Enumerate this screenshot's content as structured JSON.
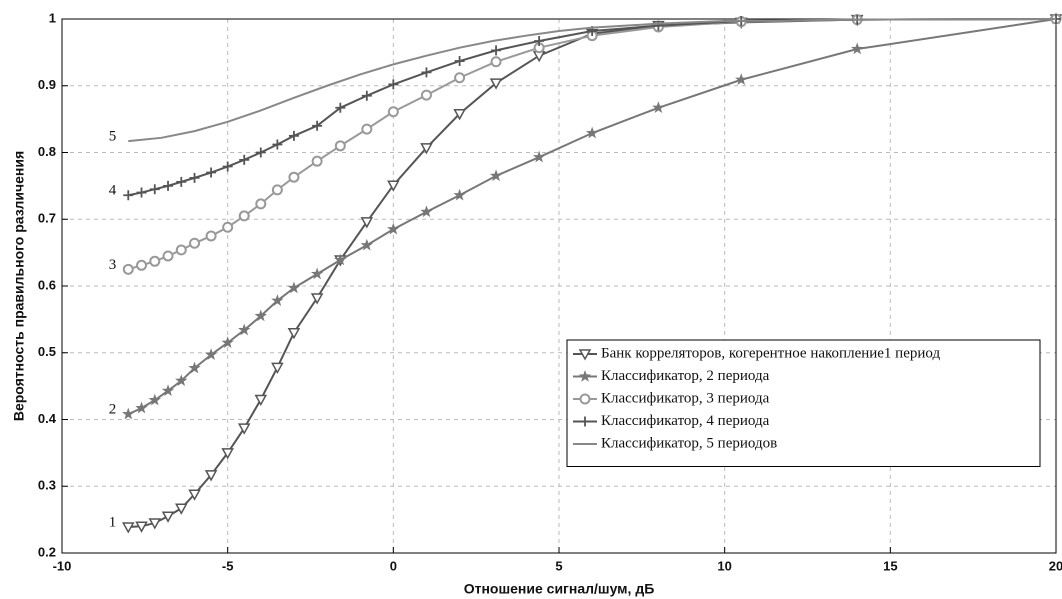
{
  "chart_data": {
    "type": "line",
    "xlabel": "Отношение сигнал/шум, дБ",
    "ylabel": "Вероятность правильного  различения",
    "xlim": [
      -10,
      20
    ],
    "xticks": [
      -10,
      -5,
      0,
      5,
      10,
      15,
      20
    ],
    "ylim": [
      0.2,
      1
    ],
    "yticks": [
      0.2,
      0.3,
      0.4,
      0.5,
      0.6,
      0.7,
      0.8,
      0.9,
      1
    ],
    "grid": true,
    "legend": "lower right",
    "series": [
      {
        "name": "Банк корреляторов, когерентное накопление1 период",
        "label": "1",
        "color": "#555555",
        "marker": "triangle-down",
        "x": [
          -8,
          -7.6,
          -7.2,
          -6.8,
          -6.4,
          -6,
          -5.5,
          -5,
          -4.5,
          -4,
          -3.5,
          -3,
          -2.3,
          -1.6,
          -0.8,
          0,
          1,
          2,
          3.1,
          4.4,
          6,
          8,
          10.5,
          14,
          20
        ],
        "values": [
          0.239,
          0.24,
          0.245,
          0.255,
          0.267,
          0.288,
          0.317,
          0.35,
          0.387,
          0.43,
          0.478,
          0.53,
          0.582,
          0.639,
          0.696,
          0.751,
          0.807,
          0.858,
          0.904,
          0.945,
          0.978,
          0.99,
          0.995,
          0.999,
          1
        ]
      },
      {
        "name": "Классификатор, 2 периода",
        "label": "2",
        "color": "#777777",
        "marker": "star",
        "x": [
          -8,
          -7.6,
          -7.2,
          -6.8,
          -6.4,
          -6,
          -5.5,
          -5,
          -4.5,
          -4,
          -3.5,
          -3,
          -2.3,
          -1.6,
          -0.8,
          0,
          1,
          2,
          3.1,
          4.4,
          6,
          8,
          10.5,
          14,
          20
        ],
        "values": [
          0.408,
          0.417,
          0.429,
          0.443,
          0.458,
          0.477,
          0.497,
          0.515,
          0.534,
          0.555,
          0.578,
          0.597,
          0.618,
          0.639,
          0.661,
          0.685,
          0.711,
          0.736,
          0.765,
          0.793,
          0.829,
          0.867,
          0.909,
          0.955,
          1
        ]
      },
      {
        "name": "Классификатор, 3 периода",
        "label": "3",
        "color": "#999999",
        "marker": "circle",
        "x": [
          -8,
          -7.6,
          -7.2,
          -6.8,
          -6.4,
          -6,
          -5.5,
          -5,
          -4.5,
          -4,
          -3.5,
          -3,
          -2.3,
          -1.6,
          -0.8,
          0,
          1,
          2,
          3.1,
          4.4,
          6,
          8,
          10.5,
          14,
          20
        ],
        "values": [
          0.625,
          0.631,
          0.637,
          0.645,
          0.654,
          0.664,
          0.675,
          0.688,
          0.705,
          0.723,
          0.744,
          0.763,
          0.787,
          0.81,
          0.835,
          0.861,
          0.886,
          0.912,
          0.936,
          0.957,
          0.975,
          0.988,
          0.996,
          0.999,
          1
        ]
      },
      {
        "name": "Классификатор, 4 периода",
        "label": "4",
        "color": "#555555",
        "marker": "plus",
        "x": [
          -8,
          -7.6,
          -7.2,
          -6.8,
          -6.4,
          -6,
          -5.5,
          -5,
          -4.5,
          -4,
          -3.5,
          -3,
          -2.3,
          -1.6,
          -0.8,
          0,
          1,
          2,
          3.1,
          4.4,
          6,
          8,
          10.5,
          14,
          20
        ],
        "values": [
          0.736,
          0.74,
          0.745,
          0.75,
          0.756,
          0.762,
          0.77,
          0.779,
          0.789,
          0.8,
          0.812,
          0.825,
          0.84,
          0.867,
          0.885,
          0.902,
          0.92,
          0.937,
          0.953,
          0.967,
          0.982,
          0.99,
          0.997,
          0.999,
          1
        ]
      },
      {
        "name": "Классификатор, 5 периодов",
        "label": "5",
        "color": "#888888",
        "marker": "none",
        "x": [
          -8,
          -7,
          -6,
          -5,
          -4,
          -3,
          -2,
          -1,
          0,
          1,
          2,
          3,
          4,
          5,
          6,
          8,
          10,
          14,
          20
        ],
        "values": [
          0.817,
          0.822,
          0.832,
          0.846,
          0.863,
          0.882,
          0.9,
          0.917,
          0.932,
          0.945,
          0.957,
          0.967,
          0.975,
          0.982,
          0.987,
          0.993,
          0.997,
          0.999,
          1
        ]
      }
    ]
  }
}
